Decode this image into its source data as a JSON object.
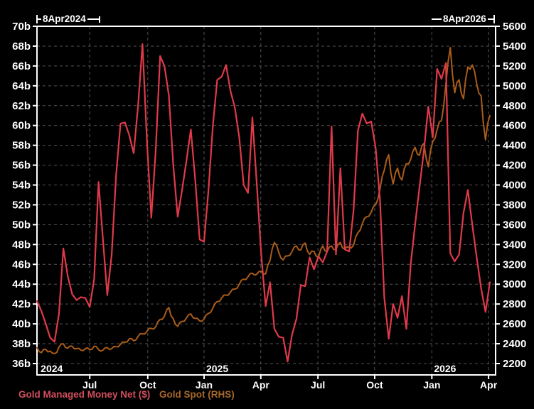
{
  "window": {
    "background": "#000000"
  },
  "annotations": {
    "start_date": "8Apr2024",
    "end_date": "8Apr2026"
  },
  "legend": [
    {
      "label": "Gold Managed Money Net ($)",
      "color": "#d24f5d"
    },
    {
      "label": "Gold Spot (RHS)",
      "color": "#a8682c"
    }
  ],
  "colors": {
    "background": "#000000",
    "frame": "#ffffff",
    "grid": "#555555",
    "tick_text": "#ffffff",
    "series_red": "#e03a4a",
    "series_orange": "#a95c19"
  },
  "left_axis": {
    "labels": [
      "70b",
      "68b",
      "66b",
      "64b",
      "62b",
      "60b",
      "58b",
      "56b",
      "54b",
      "52b",
      "50b",
      "48b",
      "46b",
      "44b",
      "42b",
      "40b",
      "38b",
      "36b"
    ],
    "min": 36,
    "max": 70,
    "step": 2
  },
  "right_axis": {
    "labels": [
      "5600",
      "5400",
      "5200",
      "5000",
      "4800",
      "4600",
      "4400",
      "4200",
      "4000",
      "3800",
      "3600",
      "3400",
      "3200",
      "3000",
      "2800",
      "2600",
      "2400",
      "2200"
    ],
    "min": 2200,
    "max": 5600,
    "step": 200
  },
  "x_axis": {
    "tick_labels": [
      "Jul",
      "Oct",
      "Jan",
      "Apr",
      "Jul",
      "Oct",
      "Jan",
      "Apr"
    ],
    "tick_weeks": [
      12,
      25.2,
      38,
      50.9,
      63.9,
      76.8,
      89.8,
      102.7
    ],
    "years": [
      {
        "label": "2024",
        "week": 0.35
      },
      {
        "label": "2025",
        "week": 38
      },
      {
        "label": "2026",
        "week": 89.8
      }
    ]
  },
  "chart_data": {
    "type": "line",
    "title": "",
    "x_unit": "weeks since 2024-04-08",
    "x_range_label": [
      "8Apr2024",
      "8Apr2026"
    ],
    "span_weeks": 104.3,
    "grid": true,
    "legend_position": "bottom-left",
    "left_ylim": [
      36,
      70
    ],
    "right_ylim": [
      2200,
      5600
    ],
    "series": [
      {
        "name": "Gold Managed Money Net ($)",
        "axis": "left",
        "unit": "$ billions",
        "color": "#e03a4a",
        "dt_weeks": 1,
        "values": [
          42.3,
          41.3,
          40.0,
          38.6,
          38.2,
          41.0,
          47.6,
          44.8,
          43.0,
          42.4,
          42.7,
          42.6,
          41.7,
          44.5,
          54.3,
          48.5,
          42.9,
          47.0,
          55.0,
          60.2,
          60.3,
          59.0,
          57.2,
          62.0,
          68.2,
          58.5,
          50.7,
          57.5,
          67.0,
          66.0,
          63.0,
          56.0,
          50.8,
          53.5,
          56.5,
          59.6,
          54.5,
          48.5,
          48.3,
          53.5,
          60.0,
          64.6,
          64.9,
          66.1,
          63.5,
          61.8,
          58.8,
          54.0,
          53.2,
          60.8,
          54.0,
          47.0,
          41.8,
          44.2,
          39.5,
          38.7,
          38.6,
          36.2,
          38.9,
          40.5,
          43.9,
          43.8,
          46.7,
          45.5,
          46.8,
          46.2,
          47.3,
          59.9,
          47.0,
          55.7,
          47.5,
          47.3,
          51.5,
          59.5,
          61.2,
          60.2,
          60.4,
          57.8,
          52.5,
          42.6,
          38.5,
          42.0,
          40.6,
          42.8,
          39.5,
          46.0,
          50.0,
          53.8,
          57.5,
          61.9,
          58.8,
          65.7,
          64.7,
          66.3,
          47.1,
          46.3,
          47.0,
          51.2,
          53.5,
          50.0,
          46.7,
          43.6,
          41.2,
          44.2
        ]
      },
      {
        "name": "Gold Spot (RHS)",
        "axis": "right",
        "unit": "USD/oz",
        "color": "#a95c19",
        "dt_weeks": 0.5,
        "values": [
          2360,
          2320,
          2310,
          2343,
          2340,
          2318,
          2325,
          2306,
          2300,
          2312,
          2365,
          2396,
          2400,
          2362,
          2355,
          2377,
          2375,
          2348,
          2350,
          2354,
          2335,
          2330,
          2350,
          2358,
          2340,
          2344,
          2375,
          2371,
          2340,
          2325,
          2335,
          2359,
          2360,
          2342,
          2350,
          2372,
          2370,
          2369,
          2395,
          2418,
          2415,
          2418,
          2450,
          2453,
          2430,
          2438,
          2475,
          2501,
          2500,
          2497,
          2525,
          2554,
          2555,
          2548,
          2570,
          2623,
          2645,
          2646,
          2680,
          2740,
          2765,
          2682,
          2650,
          2594,
          2575,
          2615,
          2625,
          2627,
          2660,
          2694,
          2700,
          2662,
          2655,
          2655,
          2630,
          2626,
          2650,
          2692,
          2705,
          2717,
          2760,
          2808,
          2825,
          2827,
          2860,
          2890,
          2890,
          2890,
          2920,
          2950,
          2950,
          2960,
          3000,
          3041,
          3050,
          3047,
          3075,
          3107,
          3110,
          3092,
          3100,
          3128,
          3130,
          3102,
          3105,
          3192,
          3240,
          3355,
          3420,
          3392,
          3320,
          3262,
          3245,
          3283,
          3285,
          3291,
          3330,
          3375,
          3385,
          3347,
          3345,
          3400,
          3415,
          3335,
          3300,
          3333,
          3330,
          3282,
          3270,
          3347,
          3385,
          3337,
          3330,
          3375,
          3385,
          3349,
          3350,
          3403,
          3420,
          3365,
          3355,
          3378,
          3370,
          3366,
          3395,
          3477,
          3520,
          3545,
          3610,
          3665,
          3680,
          3686,
          3725,
          3782,
          3800,
          3855,
          3960,
          4085,
          4150,
          4255,
          4305,
          4117,
          4010,
          4118,
          4170,
          4082,
          4050,
          4160,
          4215,
          4213,
          4260,
          4340,
          4380,
          4312,
          4300,
          4390,
          4420,
          4270,
          4185,
          4347,
          4440,
          4470,
          4560,
          4635,
          4650,
          4795,
          5020,
          5242,
          5385,
          5112,
          4930,
          5033,
          5060,
          4923,
          4870,
          5068,
          5190,
          5167,
          5210,
          5150,
          5020,
          4925,
          4900,
          4627,
          4455,
          4622,
          4700
        ]
      }
    ]
  }
}
